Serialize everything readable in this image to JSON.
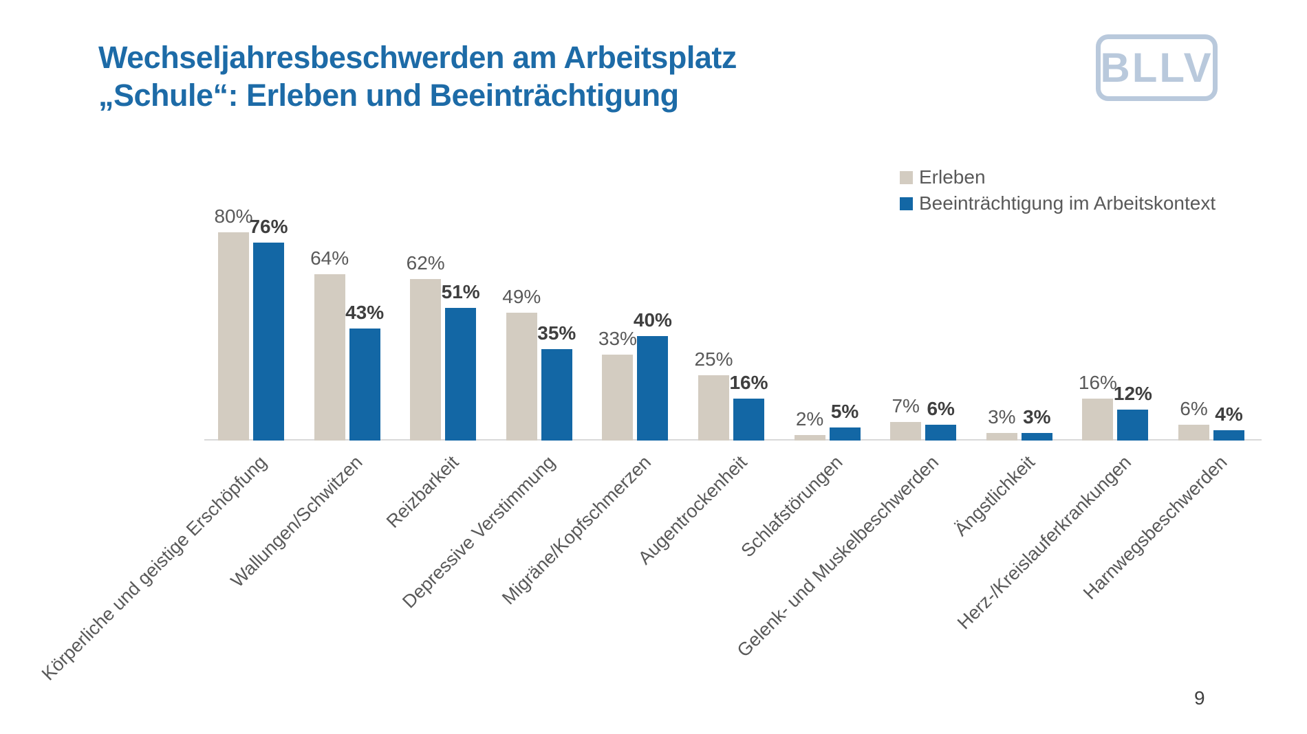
{
  "slide": {
    "title_line1": "Wechseljahresbeschwerden am Arbeitsplatz",
    "title_line2": "„Schule“: Erleben und Beeinträchtigung",
    "logo_text": "BLLV",
    "page_number": "9"
  },
  "colors": {
    "title_blue": "#1d6ba7",
    "logo_blue": "#b9c9dc",
    "axis_gray": "#d9d9d9",
    "label_gray": "#595959",
    "label_dark": "#3f3f3f"
  },
  "chart_data": {
    "type": "bar",
    "title": "",
    "categories": [
      "Körperliche und geistige Erschöpfung",
      "Wallungen/Schwitzen",
      "Reizbarkeit",
      "Depressive Verstimmung",
      "Migräne/Kopfschmerzen",
      "Augentrockenheit",
      "Schlafstörungen",
      "Gelenk- und Muskelbeschwerden",
      "Ängstlichkeit",
      "Herz-/Kreislauferkrankungen",
      "Harnwegsbeschwerden"
    ],
    "series": [
      {
        "name": "Erleben",
        "color": "#d3ccc1",
        "label_weight": "regular",
        "values": [
          80,
          64,
          62,
          49,
          33,
          25,
          2,
          7,
          3,
          16,
          6
        ]
      },
      {
        "name": "Beeinträchtigung im Arbeitskontext",
        "color": "#1367a5",
        "label_weight": "bold",
        "values": [
          76,
          43,
          51,
          35,
          40,
          16,
          5,
          6,
          3,
          12,
          4
        ]
      }
    ],
    "value_suffix": "%",
    "ylim": [
      0,
      100
    ],
    "grid": false,
    "legend_position": "top-right",
    "x_tick_rotation": 45,
    "value_labels": true
  }
}
